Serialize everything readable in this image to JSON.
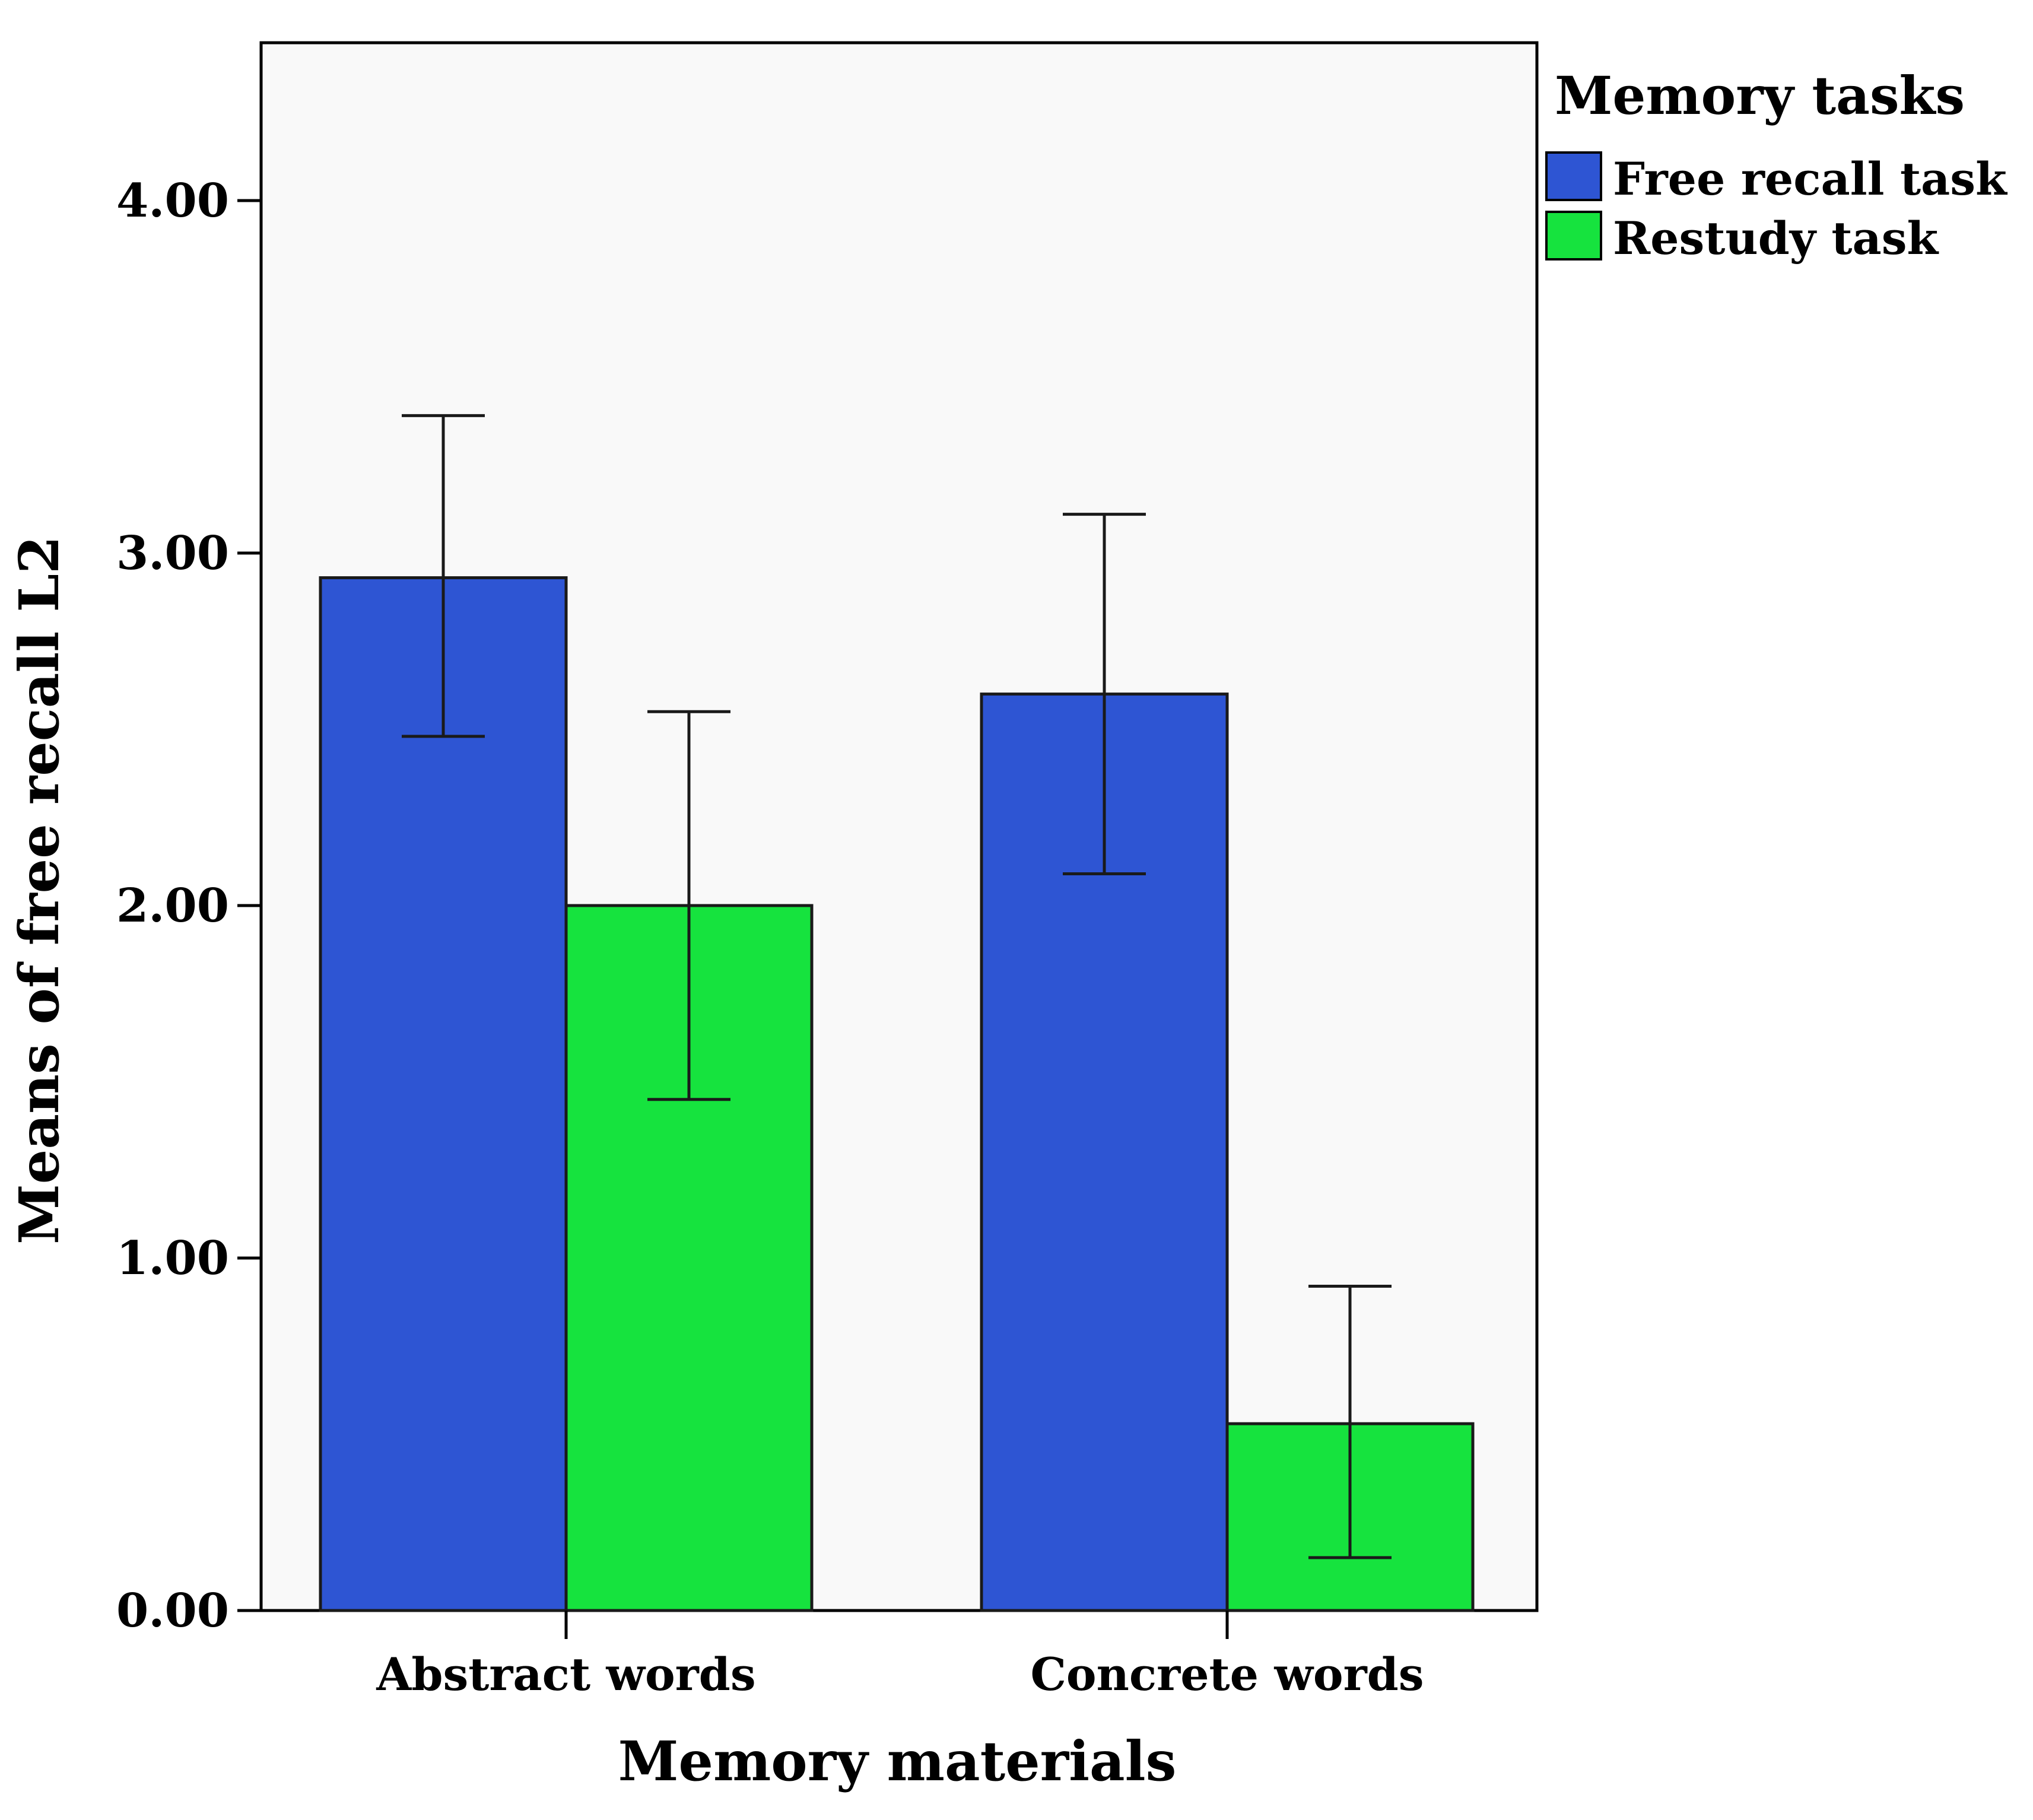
{
  "chart_data": {
    "type": "bar",
    "title": "",
    "xlabel": "Memory materials",
    "ylabel": "Means of free recall L2",
    "ylim": [
      0,
      4.4
    ],
    "yticks": [
      "0.00",
      "1.00",
      "2.00",
      "3.00",
      "4.00"
    ],
    "ytick_values": [
      0,
      1,
      2,
      3,
      4
    ],
    "categories": [
      "Abstract words",
      "Concrete words"
    ],
    "legend": {
      "title": "Memory tasks",
      "placement": "right"
    },
    "grid": false,
    "series": [
      {
        "name": "Free recall task",
        "color": "#2E55D3",
        "values": [
          2.93,
          2.6
        ],
        "error_low": [
          2.48,
          2.09
        ],
        "error_high": [
          3.39,
          3.11
        ]
      },
      {
        "name": "Restudy task",
        "color": "#16E33E",
        "values": [
          2.0,
          0.53
        ],
        "error_low": [
          1.45,
          0.15
        ],
        "error_high": [
          2.55,
          0.92
        ]
      }
    ]
  }
}
